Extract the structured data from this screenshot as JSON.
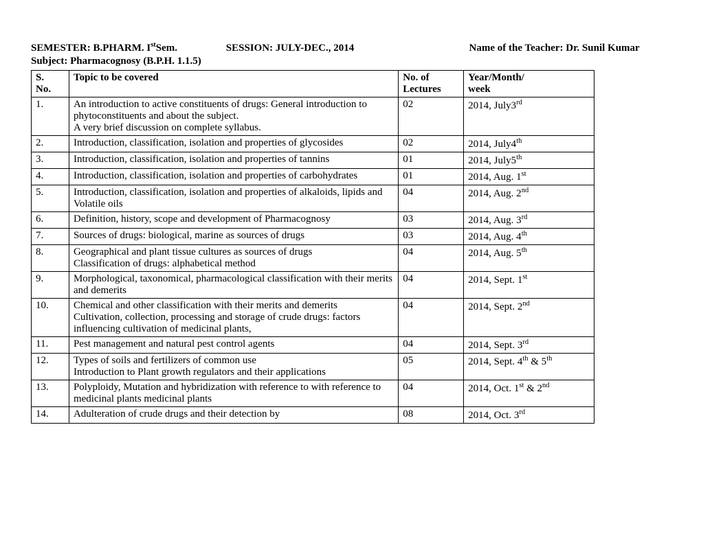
{
  "header": {
    "semester_label": "SEMESTER: B.PHARM. I",
    "semester_sup": "st",
    "semester_suffix": " Sem.",
    "session": "SESSION: JULY-DEC., 2014",
    "teacher": "Name of the Teacher: Dr. Sunil Kumar",
    "subject": "Subject: Pharmacognosy (B.P.H. 1.1.5)"
  },
  "columns": {
    "sno_l1": "S.",
    "sno_l2": "No.",
    "topic": "Topic to be covered",
    "nlec_l1": "No. of",
    "nlec_l2": "Lectures",
    "week_l1": "Year/Month/",
    "week_l2": "week"
  },
  "rows": [
    {
      "sno": "1.",
      "topic": "An introduction to active constituents of drugs: General introduction to phytoconstituents and about the subject.\nA very brief discussion on complete syllabus.",
      "nlec": "02",
      "week_pre": "2014, July3",
      "week_sup": "rd",
      "week_post": "",
      "pad": true
    },
    {
      "sno": "2.",
      "topic": "Introduction, classification, isolation and properties of glycosides",
      "nlec": "02",
      "week_pre": "2014, July4",
      "week_sup": "th",
      "week_post": "",
      "pad": true
    },
    {
      "sno": "3.",
      "topic": "Introduction, classification, isolation and properties of tannins",
      "nlec": "01",
      "week_pre": "2014, July5",
      "week_sup": "th",
      "week_post": ""
    },
    {
      "sno": "4.",
      "topic": "Introduction,   classification, isolation and properties  of carbohydrates",
      "nlec": "01",
      "week_pre": "2014, Aug. 1",
      "week_sup": "st",
      "week_post": ""
    },
    {
      "sno": "5.",
      "topic": "Introduction,   classification, isolation and properties  of alkaloids, lipids and  Volatile oils",
      "nlec": "04",
      "week_pre": "2014, Aug. 2",
      "week_sup": "nd",
      "week_post": "",
      "pad": true
    },
    {
      "sno": "6.",
      "topic": "Definition, history, scope and development of Pharmacognosy",
      "nlec": "03",
      "week_pre": "2014, Aug. 3",
      "week_sup": "rd",
      "week_post": ""
    },
    {
      "sno": "7.",
      "topic": "Sources of drugs: biological, marine  as sources of drugs",
      "nlec": "03",
      "week_pre": "2014, Aug. 4",
      "week_sup": "th",
      "week_post": ""
    },
    {
      "sno": "8.",
      "topic": "Geographical and plant tissue cultures as sources of drugs\nClassification of  drugs: alphabetical  method",
      "nlec": "04",
      "week_pre": "2014, Aug. 5",
      "week_sup": "th",
      "week_post": ""
    },
    {
      "sno": "9.",
      "topic": "Morphological, taxonomical, pharmacological classification with their merits and demerits",
      "nlec": "04",
      "week_pre": "2014, Sept. 1",
      "week_sup": "st",
      "week_post": ""
    },
    {
      "sno": "10.",
      "topic": "Chemical  and other classification  with their merits and demerits\nCultivation, collection, processing and storage of crude drugs: factors influencing cultivation of medicinal plants,",
      "nlec": "04",
      "week_pre": "2014, Sept. 2",
      "week_sup": "nd",
      "week_post": ""
    },
    {
      "sno": "11.",
      "topic": "Pest management and natural pest control agents",
      "nlec": "04",
      "week_pre": "2014, Sept. 3",
      "week_sup": "rd",
      "week_post": ""
    },
    {
      "sno": "12.",
      "topic": "Types of soils and fertilizers of common use\nIntroduction to Plant growth regulators and their applications",
      "nlec": "05",
      "week_pre": "2014, Sept. 4",
      "week_sup": "th",
      "week_post": " & 5",
      "week_sup2": "th"
    },
    {
      "sno": "13.",
      "topic": "Polyploidy, Mutation and hybridization with reference to with reference to medicinal plants medicinal plants",
      "nlec": "04",
      "week_pre": "2014, Oct. 1",
      "week_sup": "st",
      "week_post": " & 2",
      "week_sup2": "nd",
      "pad": true
    },
    {
      "sno": "14.",
      "topic": "Adulteration of crude drugs and their detection by",
      "nlec": "08",
      "week_pre": "2014, Oct. 3",
      "week_sup": "rd",
      "week_post": ""
    }
  ]
}
